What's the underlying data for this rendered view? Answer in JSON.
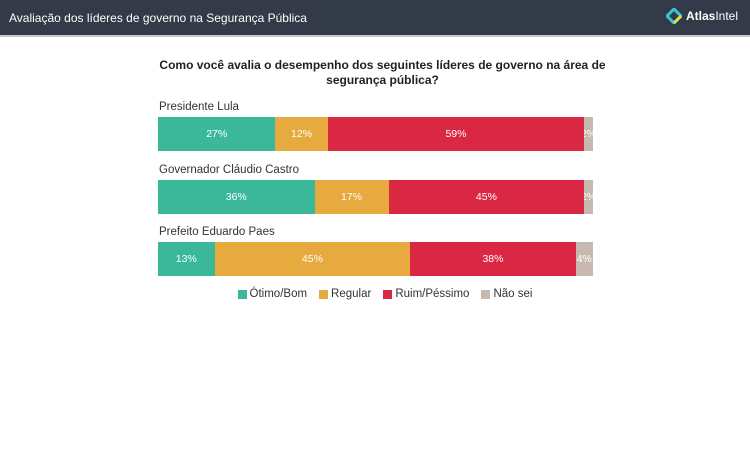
{
  "header": {
    "title": "Avaliação dos líderes de governo na Segurança Pública",
    "logo_text_bold": "Atlas",
    "logo_text": "Intel"
  },
  "chart_data": {
    "type": "bar",
    "orientation": "horizontal-stacked-100",
    "title": "Como você avalia o desempenho dos seguintes líderes de governo na área de segurança pública?",
    "categories": [
      "Presidente Lula",
      "Governador Cláudio Castro",
      "Prefeito Eduardo Paes"
    ],
    "series": [
      {
        "name": "Ótimo/Bom",
        "color": "#3bb79a",
        "values": [
          27,
          36,
          13
        ]
      },
      {
        "name": "Regular",
        "color": "#e6aa3e",
        "values": [
          12,
          17,
          45
        ]
      },
      {
        "name": "Ruim/Péssimo",
        "color": "#d92744",
        "values": [
          59,
          45,
          38
        ]
      },
      {
        "name": "Não sei",
        "color": "#c7b9b0",
        "values": [
          2,
          2,
          4
        ]
      }
    ],
    "legend": "bottom"
  }
}
